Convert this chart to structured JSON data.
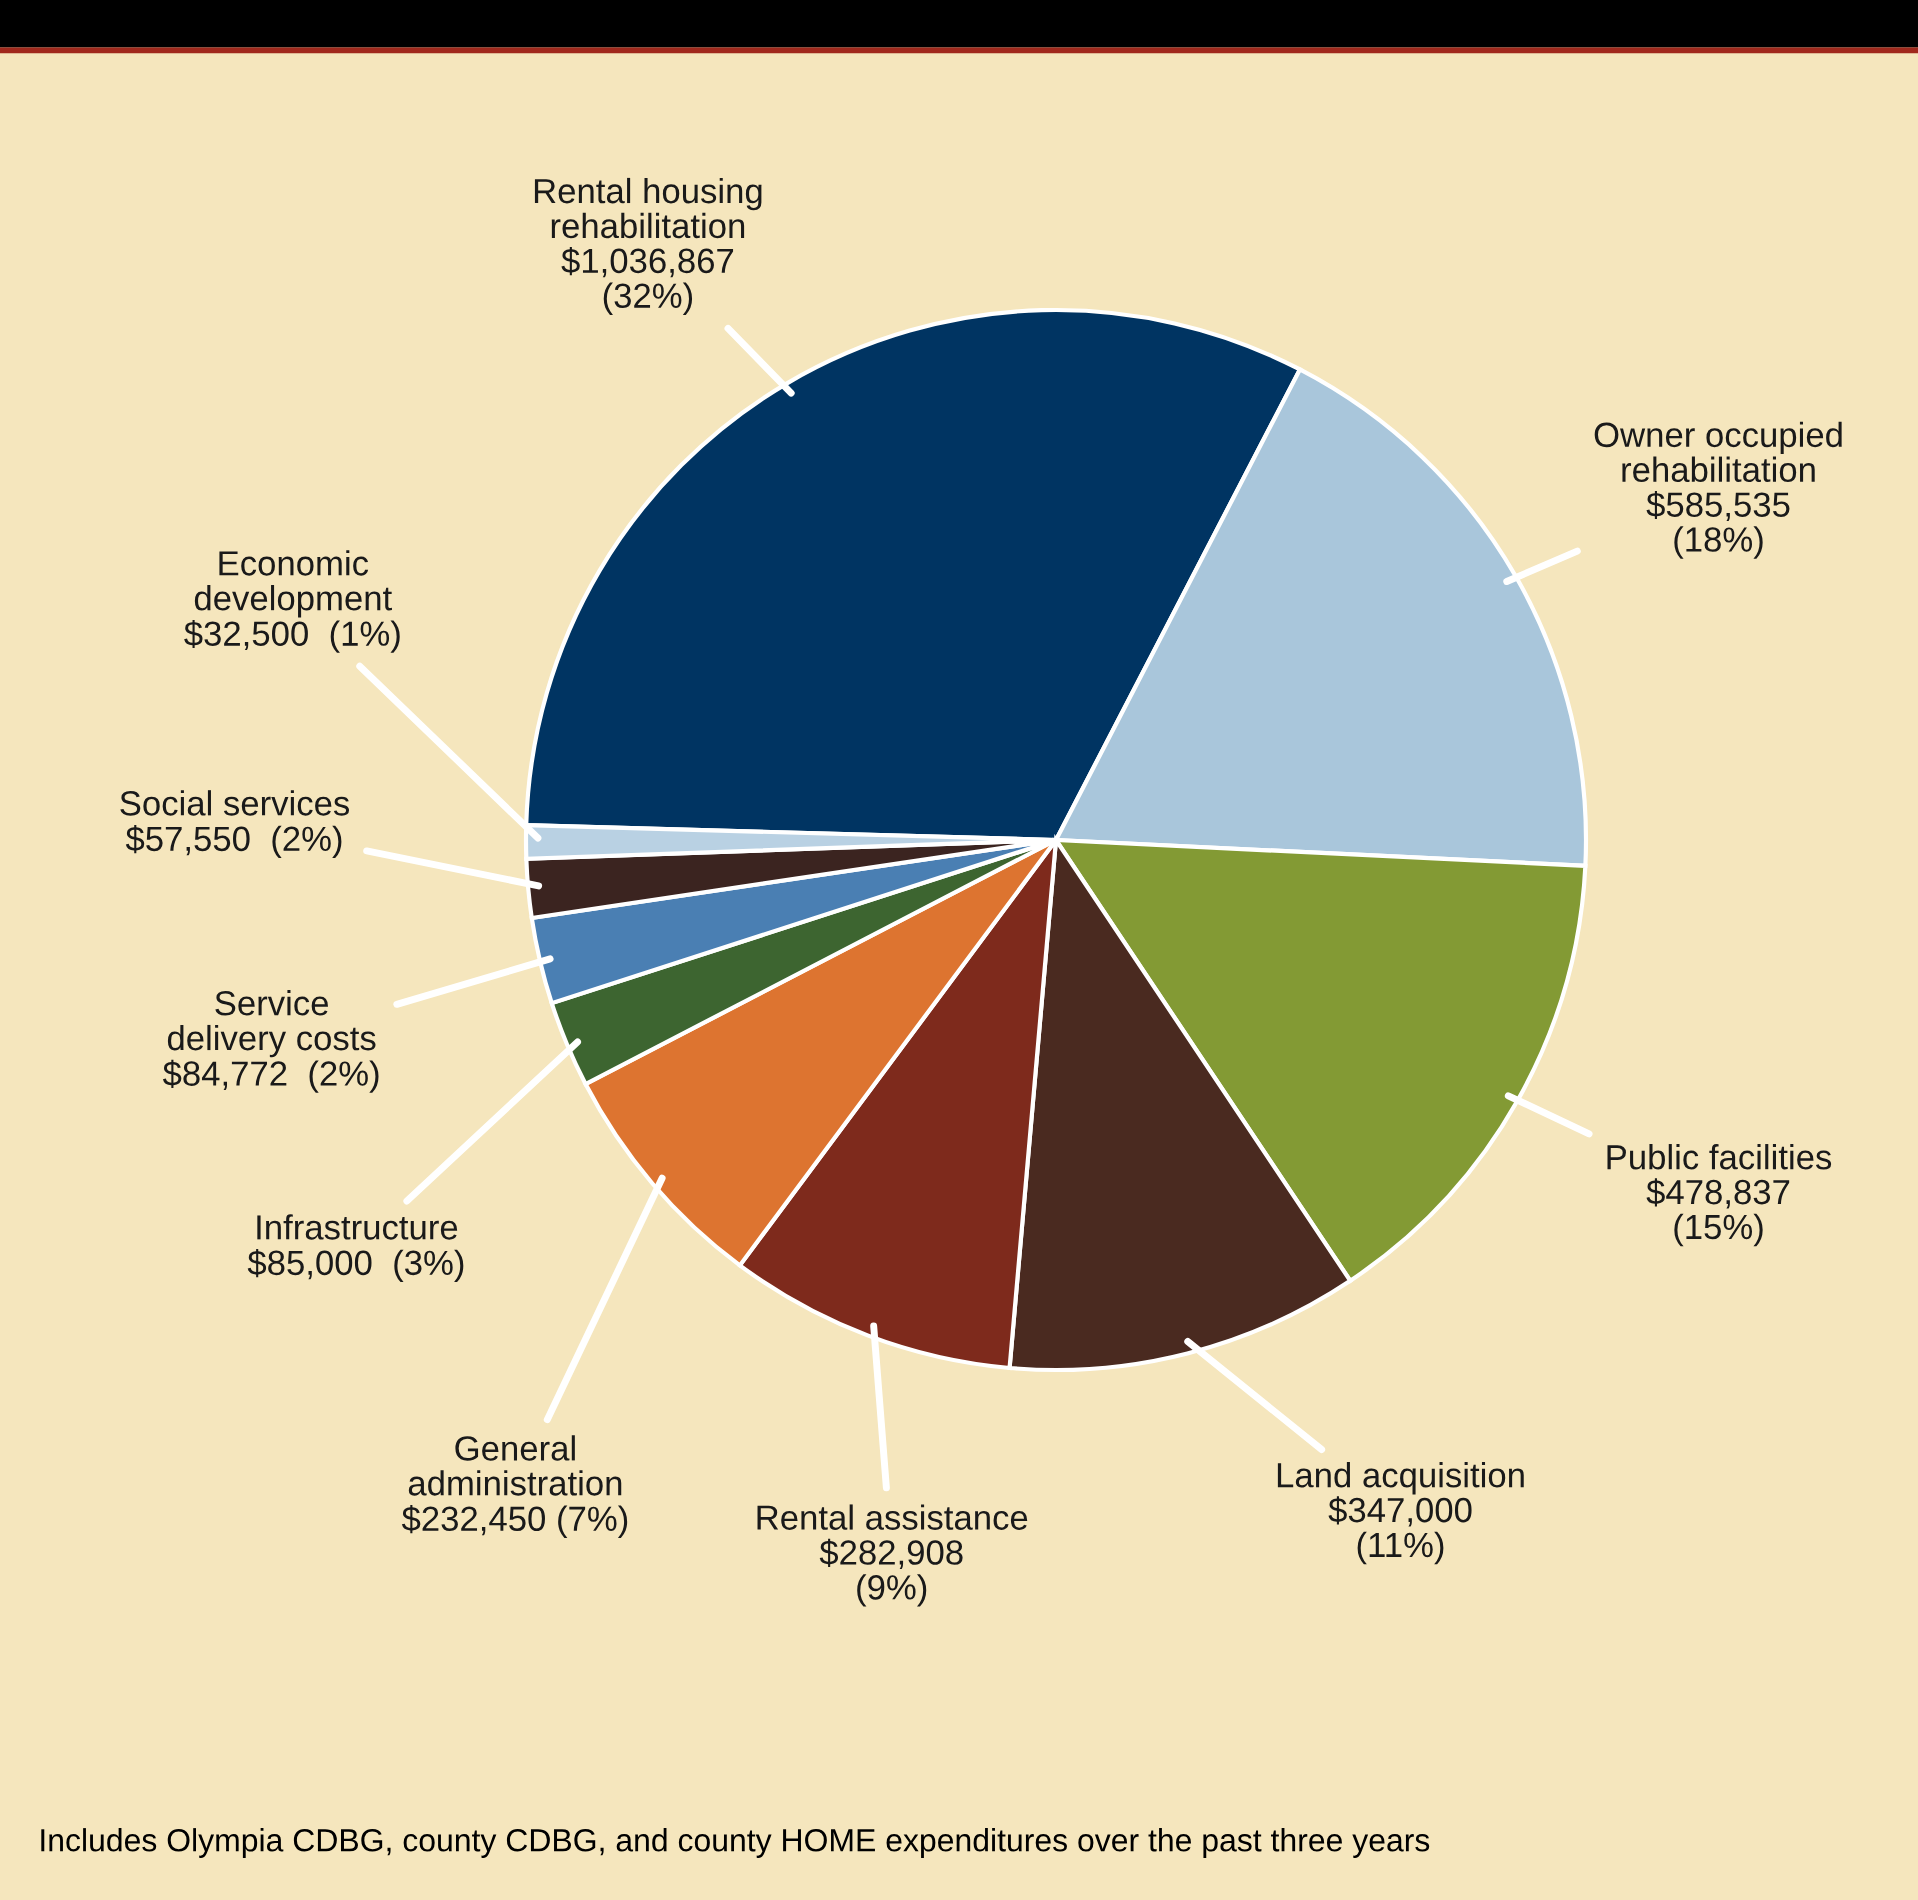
{
  "chart_data": {
    "type": "pie",
    "categories": [
      "Rental housing rehabilitation",
      "Owner occupied rehabilitation",
      "Public facilities",
      "Land acquisition",
      "Rental assistance",
      "General administration",
      "Infrastructure",
      "Service delivery costs",
      "Social services",
      "Economic development"
    ],
    "values": [
      1036867,
      585535,
      478837,
      347000,
      282908,
      232450,
      85000,
      84772,
      57550,
      32500
    ],
    "value_labels": [
      "$1,036,867\n(32%)",
      "$585,535\n(18%)",
      "$478,837\n(15%)",
      "$347,000\n(11%)",
      "$282,908\n(9%)",
      "$232,450 (7%)",
      "$85,000  (3%)",
      "$84,772  (2%)",
      "$57,550  (2%)",
      "$32,500  (1%)"
    ],
    "colors": [
      "#003462",
      "#a9c6db",
      "#839a34",
      "#4a2a20",
      "#7e2a1c",
      "#dd7430",
      "#3d6530",
      "#4a7fb3",
      "#3b2420",
      "#b9d1e3"
    ],
    "annotations": [
      "Includes Olympia CDBG, county CDBG, and county HOME expenditures over the past three years"
    ]
  }
}
